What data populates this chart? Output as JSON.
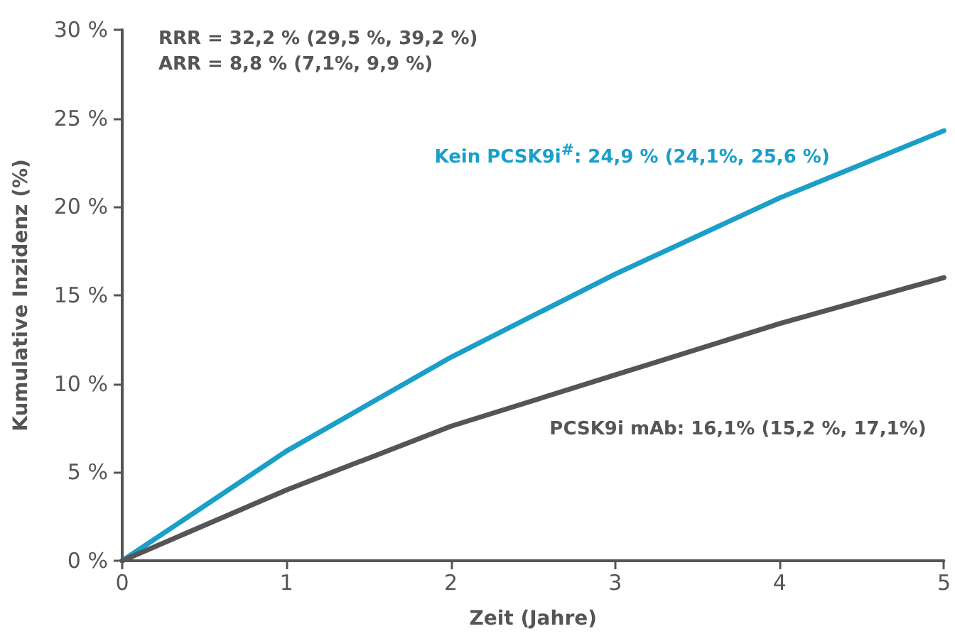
{
  "chart_data": {
    "type": "line",
    "xlabel": "Zeit (Jahre)",
    "ylabel": "Kumulative Inzidenz (%)",
    "x": [
      0,
      1,
      2,
      3,
      4,
      5
    ],
    "series": [
      {
        "name": "Kein PCSK9i$^{#}$: 24,9 % (24,1%, 25,6 %)",
        "color": "#1a9fc9",
        "values": [
          0,
          6.2,
          11.5,
          16.2,
          20.5,
          24.3
        ]
      },
      {
        "name": "PCSK9i mAb: 16,1% (15,2 %, 17,1%)",
        "color": "#555555",
        "values": [
          0,
          4.0,
          7.6,
          10.5,
          13.4,
          16.0
        ]
      }
    ],
    "xlim": [
      0,
      5
    ],
    "xticks": [
      0,
      1,
      2,
      3,
      4,
      5
    ],
    "ylim": [
      0,
      30
    ],
    "yticks": [
      {
        "value": 0,
        "label": "0 %"
      },
      {
        "value": 5,
        "label": "5 %"
      },
      {
        "value": 10,
        "label": "10 %"
      },
      {
        "value": 15,
        "label": "15 %"
      },
      {
        "value": 20,
        "label": "20 %"
      },
      {
        "value": 25,
        "label": "25 %"
      },
      {
        "value": 30,
        "label": "30 %"
      }
    ],
    "annotations": [
      "RRR = 32,2 % (29,5 %, 39,2 %)",
      "ARR = 8,8 % (7,1%, 9,9 %)"
    ],
    "grid": false,
    "legend": false,
    "marker": "none",
    "line_style": "solid"
  }
}
